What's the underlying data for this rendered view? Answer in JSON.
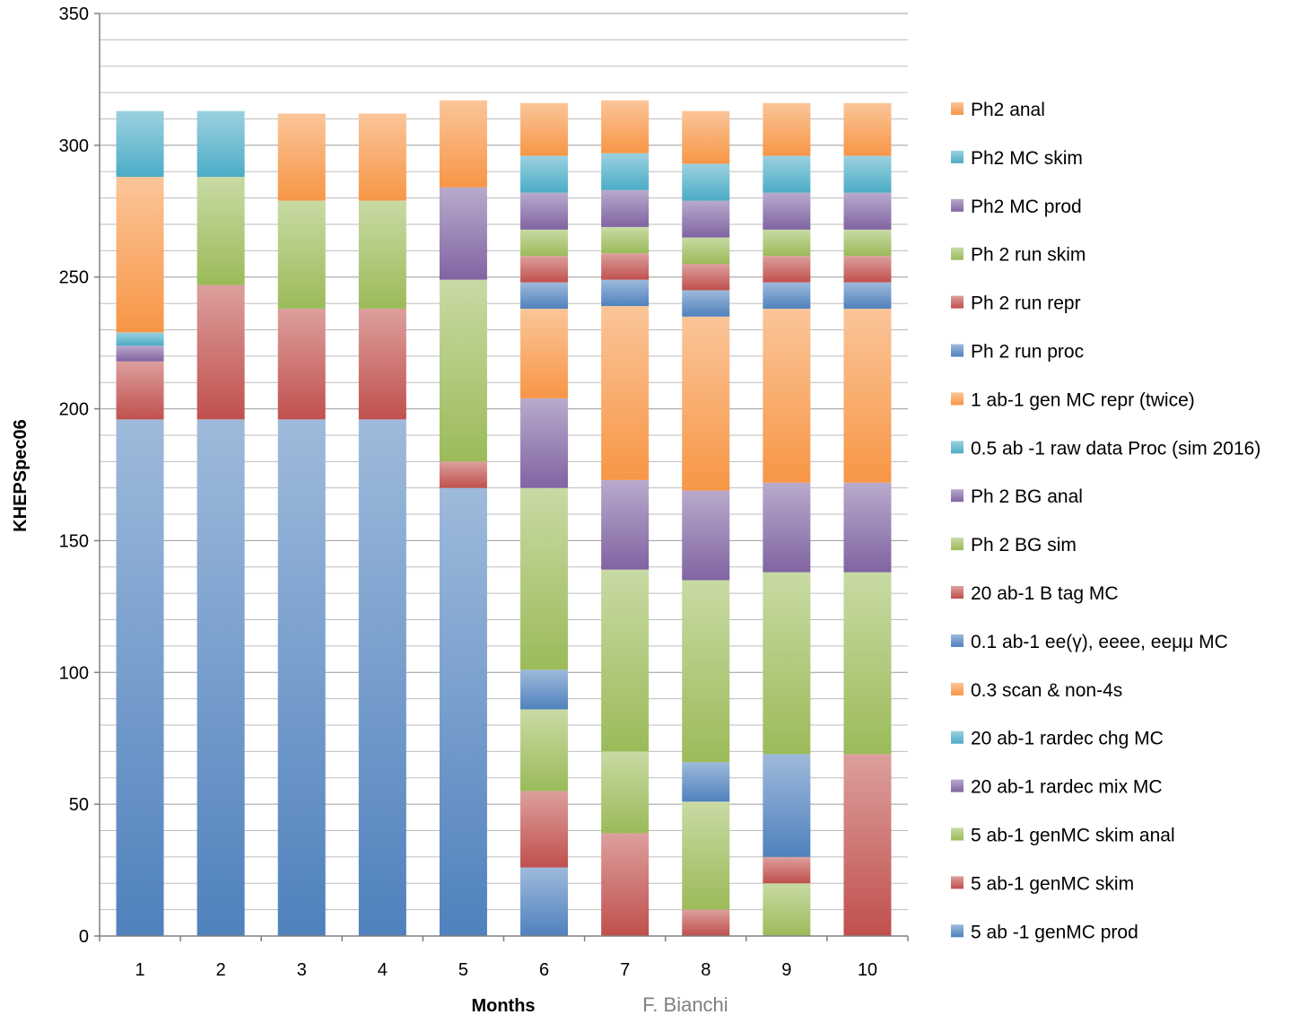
{
  "chart_data": {
    "type": "bar",
    "stacked": true,
    "xlabel": "Months",
    "ylabel": "KHEPSpec06",
    "credit": "F. Bianchi",
    "ylim": [
      0,
      350
    ],
    "ytick_step": 50,
    "minor_grid_step": 10,
    "grid": true,
    "legend_position": "right",
    "categories": [
      "1",
      "2",
      "3",
      "4",
      "5",
      "6",
      "7",
      "8",
      "9",
      "10"
    ],
    "series": [
      {
        "name": "5 ab -1  genMC prod",
        "color": "#4f81bd",
        "values": [
          196,
          196,
          196,
          196,
          170,
          26,
          0,
          0,
          0,
          0
        ]
      },
      {
        "name": "5 ab-1 genMC skim",
        "color": "#c0504d",
        "values": [
          22,
          51,
          42,
          42,
          10,
          29,
          39,
          10,
          0,
          69
        ]
      },
      {
        "name": "5 ab-1 genMC skim anal",
        "color": "#9bbb59",
        "values": [
          0,
          41,
          41,
          41,
          0,
          31,
          31,
          41,
          20,
          0
        ]
      },
      {
        "name": "20 ab-1 rardec mix MC",
        "color": "#8064a2",
        "values": [
          6,
          0,
          0,
          0,
          0,
          0,
          0,
          0,
          0,
          0
        ]
      },
      {
        "name": "20 ab-1 rardec chg MC",
        "color": "#4bacc6",
        "values": [
          5,
          0,
          0,
          0,
          0,
          0,
          0,
          0,
          0,
          0
        ]
      },
      {
        "name": "0.3 scan & non-4s",
        "color": "#f79646",
        "values": [
          0,
          0,
          0,
          0,
          0,
          0,
          0,
          0,
          0,
          0
        ]
      },
      {
        "name": "0.1 ab-1 ee(γ), eeee, eeμμ MC",
        "color": "#4f81bd",
        "values": [
          0,
          0,
          0,
          0,
          0,
          15,
          0,
          15,
          39,
          0
        ]
      },
      {
        "name": "20 ab-1 B tag MC",
        "color": "#c0504d",
        "values": [
          0,
          0,
          0,
          0,
          0,
          0,
          0,
          0,
          10,
          0
        ]
      },
      {
        "name": "Ph 2 BG sim",
        "color": "#9bbb59",
        "values": [
          0,
          0,
          0,
          0,
          69,
          69,
          69,
          69,
          69,
          69
        ]
      },
      {
        "name": "Ph 2 BG anal",
        "color": "#8064a2",
        "values": [
          0,
          0,
          0,
          0,
          0,
          34,
          34,
          34,
          34,
          34
        ]
      },
      {
        "name": "0.5 ab -1 raw data Proc (sim 2016)",
        "color": "#4bacc6",
        "values": [
          0,
          0,
          0,
          0,
          0,
          0,
          0,
          0,
          0,
          0
        ]
      },
      {
        "name": "1 ab-1 gen MC repr (twice)",
        "color": "#f79646",
        "values": [
          59,
          0,
          0,
          0,
          0,
          0,
          0,
          0,
          0,
          0
        ]
      },
      {
        "name": "Ph 2 run proc",
        "color": "#4f81bd",
        "values": [
          0,
          0,
          0,
          0,
          0,
          10,
          10,
          10,
          10,
          10
        ]
      },
      {
        "name": "Ph 2 run repr",
        "color": "#c0504d",
        "values": [
          0,
          0,
          0,
          0,
          0,
          10,
          10,
          10,
          10,
          10
        ]
      },
      {
        "name": "Ph 2 run skim",
        "color": "#9bbb59",
        "values": [
          0,
          0,
          0,
          0,
          0,
          10,
          10,
          10,
          10,
          10
        ]
      },
      {
        "name": "Ph2 MC prod",
        "color": "#8064a2",
        "values": [
          0,
          0,
          0,
          0,
          35,
          14,
          14,
          14,
          14,
          14
        ]
      },
      {
        "name": "Ph2 MC skim",
        "color": "#4bacc6",
        "values": [
          25,
          25,
          0,
          0,
          0,
          14,
          14,
          14,
          14,
          14
        ]
      },
      {
        "name": "Ph2 anal",
        "color": "#f79646",
        "values": [
          0,
          0,
          33,
          33,
          33,
          20,
          20,
          20,
          20,
          20
        ]
      }
    ],
    "segment_order": [
      [
        0,
        1,
        3,
        4,
        11,
        16
      ],
      [
        0,
        1,
        2,
        16
      ],
      [
        0,
        1,
        2,
        17
      ],
      [
        0,
        1,
        2,
        17
      ],
      [
        0,
        1,
        8,
        15,
        17
      ],
      [
        0,
        1,
        2,
        6,
        8,
        9,
        11,
        12,
        13,
        14,
        15,
        16,
        17
      ],
      [
        1,
        2,
        8,
        9,
        11,
        12,
        13,
        14,
        15,
        16,
        17
      ],
      [
        1,
        2,
        6,
        8,
        9,
        11,
        12,
        13,
        14,
        15,
        16,
        17
      ],
      [
        2,
        7,
        6,
        8,
        9,
        11,
        12,
        13,
        14,
        15,
        16,
        17
      ],
      [
        1,
        8,
        9,
        11,
        12,
        13,
        14,
        15,
        16,
        17
      ]
    ],
    "month_overrides": {
      "5": {
        "8": 69
      },
      "6": {
        "11": 34
      },
      "7": {
        "11": 66
      },
      "8": {
        "11": 66
      },
      "9": {
        "11": 66
      },
      "10": {
        "11": 66
      }
    }
  }
}
